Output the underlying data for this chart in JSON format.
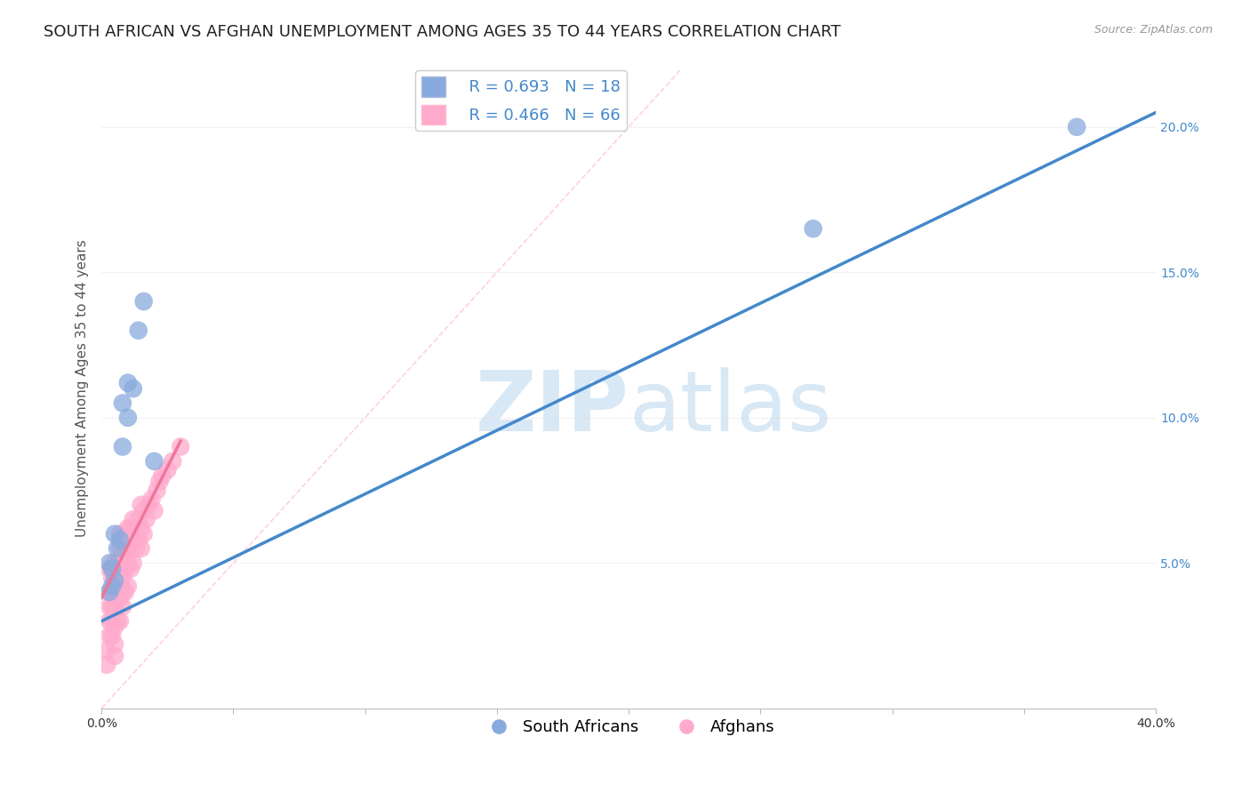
{
  "title": "SOUTH AFRICAN VS AFGHAN UNEMPLOYMENT AMONG AGES 35 TO 44 YEARS CORRELATION CHART",
  "source": "Source: ZipAtlas.com",
  "ylabel": "Unemployment Among Ages 35 to 44 years",
  "xlim": [
    0.0,
    0.4
  ],
  "ylim": [
    0.0,
    0.22
  ],
  "xticks": [
    0.0,
    0.05,
    0.1,
    0.15,
    0.2,
    0.25,
    0.3,
    0.35,
    0.4
  ],
  "xtick_labels": [
    "0.0%",
    "",
    "",
    "",
    "",
    "",
    "",
    "",
    "40.0%"
  ],
  "ytick_positions": [
    0.05,
    0.1,
    0.15,
    0.2
  ],
  "ytick_labels": [
    "5.0%",
    "10.0%",
    "15.0%",
    "20.0%"
  ],
  "legend_blue_R": "R = 0.693",
  "legend_blue_N": "N = 18",
  "legend_pink_R": "R = 0.466",
  "legend_pink_N": "N = 66",
  "blue_color": "#88AADD",
  "pink_color": "#FFAACC",
  "blue_line_color": "#4488CC",
  "pink_line_color": "#EE7799",
  "diag_color": "#FFCCDD",
  "watermark_color": "#D8E8F5",
  "grid_color": "#DDDDDD",
  "background_color": "#FFFFFF",
  "title_fontsize": 13,
  "axis_label_fontsize": 11,
  "tick_fontsize": 10,
  "legend_fontsize": 13,
  "south_african_x": [
    0.003,
    0.003,
    0.004,
    0.004,
    0.005,
    0.005,
    0.006,
    0.007,
    0.008,
    0.008,
    0.01,
    0.01,
    0.012,
    0.014,
    0.016,
    0.02,
    0.27,
    0.37
  ],
  "south_african_y": [
    0.04,
    0.05,
    0.042,
    0.048,
    0.044,
    0.06,
    0.055,
    0.058,
    0.09,
    0.105,
    0.1,
    0.112,
    0.11,
    0.13,
    0.14,
    0.085,
    0.165,
    0.2
  ],
  "afghan_x": [
    0.002,
    0.002,
    0.003,
    0.003,
    0.003,
    0.003,
    0.003,
    0.004,
    0.004,
    0.004,
    0.004,
    0.004,
    0.005,
    0.005,
    0.005,
    0.005,
    0.005,
    0.005,
    0.005,
    0.006,
    0.006,
    0.006,
    0.006,
    0.007,
    0.007,
    0.007,
    0.007,
    0.007,
    0.007,
    0.008,
    0.008,
    0.008,
    0.008,
    0.008,
    0.009,
    0.009,
    0.009,
    0.01,
    0.01,
    0.01,
    0.01,
    0.011,
    0.011,
    0.011,
    0.012,
    0.012,
    0.012,
    0.013,
    0.013,
    0.014,
    0.014,
    0.015,
    0.015,
    0.015,
    0.016,
    0.016,
    0.017,
    0.018,
    0.019,
    0.02,
    0.021,
    0.022,
    0.023,
    0.025,
    0.027,
    0.03
  ],
  "afghan_y": [
    0.02,
    0.015,
    0.025,
    0.03,
    0.035,
    0.04,
    0.048,
    0.025,
    0.03,
    0.035,
    0.04,
    0.045,
    0.018,
    0.022,
    0.028,
    0.035,
    0.04,
    0.045,
    0.05,
    0.03,
    0.038,
    0.042,
    0.05,
    0.03,
    0.038,
    0.042,
    0.048,
    0.055,
    0.06,
    0.035,
    0.04,
    0.045,
    0.05,
    0.058,
    0.04,
    0.048,
    0.055,
    0.042,
    0.05,
    0.055,
    0.062,
    0.048,
    0.055,
    0.062,
    0.05,
    0.058,
    0.065,
    0.055,
    0.062,
    0.058,
    0.065,
    0.055,
    0.062,
    0.07,
    0.06,
    0.068,
    0.065,
    0.07,
    0.072,
    0.068,
    0.075,
    0.078,
    0.08,
    0.082,
    0.085,
    0.09
  ],
  "blue_line_x0": 0.0,
  "blue_line_x1": 0.4,
  "blue_line_y0": 0.03,
  "blue_line_y1": 0.205,
  "pink_line_x0": 0.0,
  "pink_line_x1": 0.03,
  "pink_line_y0": 0.038,
  "pink_line_y1": 0.092
}
